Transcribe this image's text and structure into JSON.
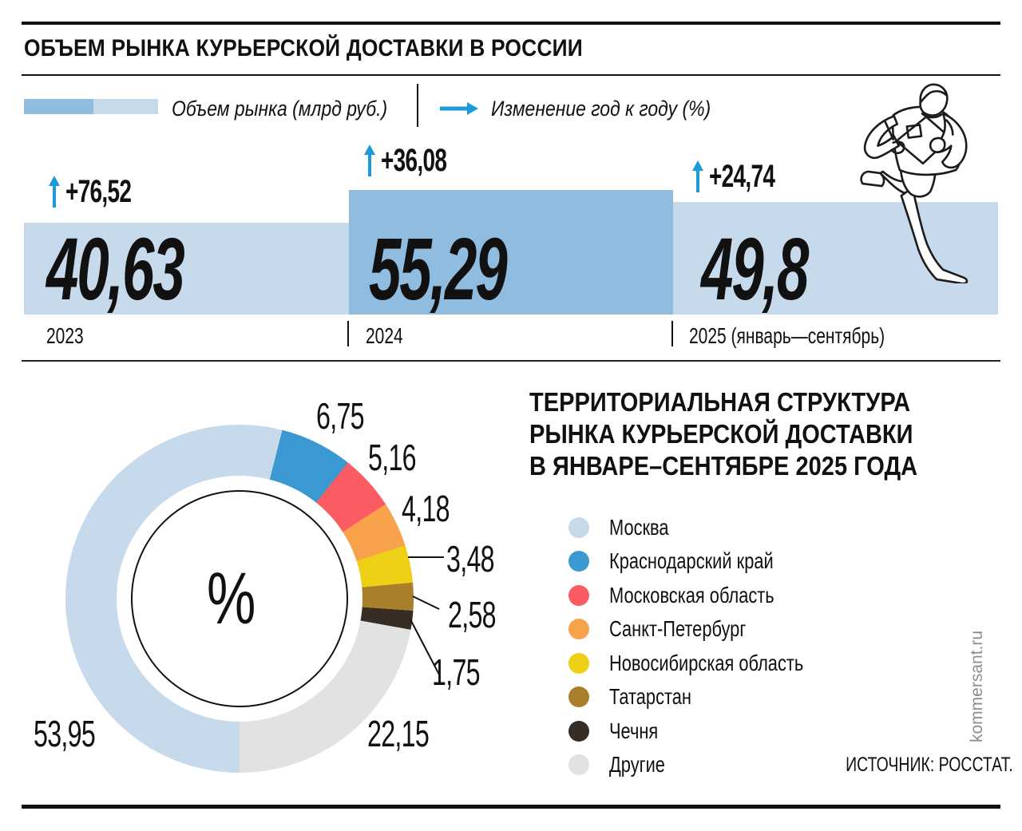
{
  "header": {
    "title": "ОБЪЕМ РЫНКА КУРЬЕРСКОЙ ДОСТАВКИ В РОССИИ",
    "legend": {
      "volume": "Объем рынка (млрд руб.)",
      "change": "Изменение год к году (%)"
    }
  },
  "bars": {
    "items": [
      {
        "year": "2023",
        "value": "40,63",
        "change": "+76,52"
      },
      {
        "year": "2024",
        "value": "55,29",
        "change": "+36,08"
      },
      {
        "year": "2025 (январь—сентябрь)",
        "value": "49,8",
        "change": "+24,74"
      }
    ]
  },
  "territory": {
    "title_lines": [
      "ТЕРРИТОРИАЛЬНАЯ СТРУКТУРА",
      "РЫНКА КУРЬЕРСКОЙ ДОСТАВКИ",
      "В ЯНВАРЕ–СЕНТЯБРЕ 2025 ГОДА"
    ],
    "center_label": "%"
  },
  "footer": {
    "source": "ИСТОЧНИК: РОССТАТ.",
    "watermark": "kommersant.ru"
  },
  "colors": {
    "accent_blue": "#1b9cd9",
    "bar_light": "#c6daec",
    "bar_dark": "#8fbcdf",
    "text": "#111111",
    "watermark_gray": "#8e8e8e"
  },
  "chart_data": [
    {
      "type": "bar",
      "title": "ОБЪЕМ РЫНКА КУРЬЕРСКОЙ ДОСТАВКИ В РОССИИ",
      "categories": [
        "2023",
        "2024",
        "2025 (январь—сентябрь)"
      ],
      "series": [
        {
          "name": "Объем рынка (млрд руб.)",
          "values": [
            40.63,
            55.29,
            49.8
          ]
        },
        {
          "name": "Изменение год к году (%)",
          "values": [
            76.52,
            36.08,
            24.74
          ]
        }
      ],
      "bar_colors": [
        "#c6daec",
        "#8fbcdf",
        "#c6daec"
      ],
      "ylim": [
        0,
        60
      ],
      "grid": false,
      "legend_position": "top"
    },
    {
      "type": "pie",
      "subtype": "donut",
      "title": "ТЕРРИТОРИАЛЬНАЯ СТРУКТУРА РЫНКА КУРЬЕРСКОЙ ДОСТАВКИ В ЯНВАРЕ–СЕНТЯБРЕ 2025 ГОДА",
      "unit": "%",
      "center_label": "%",
      "start_angle_deg": 180,
      "direction": "clockwise",
      "legend_position": "right",
      "segments": [
        {
          "label": "Москва",
          "value": 53.95,
          "display": "53,95",
          "color": "#c6daec"
        },
        {
          "label": "Краснодарский край",
          "value": 6.75,
          "display": "6,75",
          "color": "#3999d0"
        },
        {
          "label": "Московская область",
          "value": 5.16,
          "display": "5,16",
          "color": "#fb5b63"
        },
        {
          "label": "Санкт-Петербург",
          "value": 4.18,
          "display": "4,18",
          "color": "#f9a24c"
        },
        {
          "label": "Новосибирская область",
          "value": 3.48,
          "display": "3,48",
          "color": "#eed117"
        },
        {
          "label": "Татарстан",
          "value": 2.58,
          "display": "2,58",
          "color": "#a87f2a"
        },
        {
          "label": "Чечня",
          "value": 1.75,
          "display": "1,75",
          "color": "#372d25"
        },
        {
          "label": "Другие",
          "value": 22.15,
          "display": "22,15",
          "color": "#e2e2e2"
        }
      ]
    }
  ]
}
